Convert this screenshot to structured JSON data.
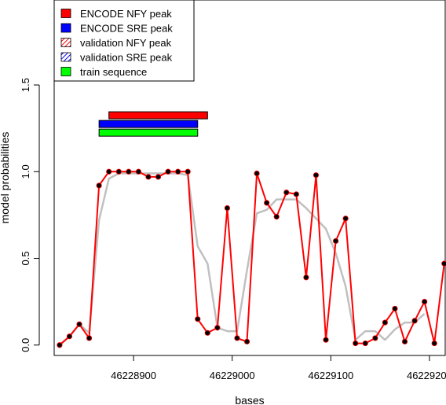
{
  "chart_data": {
    "type": "line",
    "title": "",
    "xlabel": "bases",
    "ylabel": "model probabilities",
    "xlim": [
      46228819.5,
      46229216.0
    ],
    "ylim": [
      -0.06,
      1.99
    ],
    "xticks": [
      46228900,
      46229000,
      46229100,
      46229200
    ],
    "xtick_labels": [
      "46228900",
      "46229000",
      "46229100",
      "46229200"
    ],
    "yticks": [
      0.0,
      0.5,
      1.0,
      1.5
    ],
    "ytick_labels": [
      "0.0",
      "0.5",
      "1.0",
      "1.5"
    ],
    "grid": false,
    "legend_position": "top-left",
    "legend": [
      {
        "label": "ENCODE NFY peak",
        "color": "#ff0000",
        "style": "solid"
      },
      {
        "label": "ENCODE SRE peak",
        "color": "#0000ff",
        "style": "solid"
      },
      {
        "label": " validation NFY peak",
        "color": "#ff0000",
        "style": "hatched"
      },
      {
        "label": "validation SRE peak",
        "color": "#0000ff",
        "style": "hatched"
      },
      {
        "label": "train sequence",
        "color": "#00ff00",
        "style": "solid"
      }
    ],
    "regions": [
      {
        "label": "ENCODE NFY peak",
        "color": "#ff0000",
        "x0": 46228875,
        "x1": 46228975,
        "y": 1.325
      },
      {
        "label": "ENCODE SRE peak",
        "color": "#0000ff",
        "x0": 46228865,
        "x1": 46228965,
        "y": 1.275
      },
      {
        "label": "train sequence",
        "color": "#00ff00",
        "x0": 46228865,
        "x1": 46228965,
        "y": 1.225
      }
    ],
    "series": [
      {
        "color": "#ff0000",
        "points": [
          [
            46228825,
            0.0
          ],
          [
            46228835,
            0.05
          ],
          [
            46228845,
            0.12
          ],
          [
            46228855,
            0.04
          ],
          [
            46228865,
            0.92
          ],
          [
            46228875,
            1.0
          ],
          [
            46228885,
            1.0
          ],
          [
            46228895,
            1.0
          ],
          [
            46228905,
            1.0
          ],
          [
            46228915,
            0.97
          ],
          [
            46228925,
            0.97
          ],
          [
            46228935,
            1.0
          ],
          [
            46228945,
            1.0
          ],
          [
            46228955,
            1.0
          ],
          [
            46228965,
            0.15
          ],
          [
            46228975,
            0.07
          ],
          [
            46228985,
            0.1
          ],
          [
            46228995,
            0.79
          ],
          [
            46229005,
            0.04
          ],
          [
            46229015,
            0.02
          ],
          [
            46229025,
            0.99
          ],
          [
            46229035,
            0.82
          ],
          [
            46229045,
            0.74
          ],
          [
            46229055,
            0.88
          ],
          [
            46229065,
            0.87
          ],
          [
            46229075,
            0.39
          ],
          [
            46229085,
            0.98
          ],
          [
            46229095,
            0.03
          ],
          [
            46229105,
            0.6
          ],
          [
            46229115,
            0.73
          ],
          [
            46229125,
            0.01
          ],
          [
            46229135,
            0.01
          ],
          [
            46229145,
            0.04
          ],
          [
            46229155,
            0.13
          ],
          [
            46229165,
            0.21
          ],
          [
            46229175,
            0.02
          ],
          [
            46229185,
            0.14
          ],
          [
            46229195,
            0.25
          ],
          [
            46229205,
            0.01
          ],
          [
            46229215,
            0.47
          ]
        ]
      },
      {
        "color": "#c0c0c0",
        "points": [
          [
            46228825,
            0.0
          ],
          [
            46228835,
            0.05
          ],
          [
            46228845,
            0.12
          ],
          [
            46228855,
            0.07
          ],
          [
            46228865,
            0.72
          ],
          [
            46228875,
            0.96
          ],
          [
            46228885,
            0.99
          ],
          [
            46228895,
            0.99
          ],
          [
            46228905,
            0.99
          ],
          [
            46228915,
            0.99
          ],
          [
            46228925,
            0.99
          ],
          [
            46228935,
            0.99
          ],
          [
            46228945,
            0.99
          ],
          [
            46228955,
            0.98
          ],
          [
            46228965,
            0.57
          ],
          [
            46228975,
            0.47
          ],
          [
            46228985,
            0.1
          ],
          [
            46228995,
            0.08
          ],
          [
            46229005,
            0.08
          ],
          [
            46229015,
            0.43
          ],
          [
            46229025,
            0.76
          ],
          [
            46229035,
            0.78
          ],
          [
            46229045,
            0.84
          ],
          [
            46229055,
            0.84
          ],
          [
            46229065,
            0.84
          ],
          [
            46229075,
            0.79
          ],
          [
            46229085,
            0.73
          ],
          [
            46229095,
            0.67
          ],
          [
            46229105,
            0.53
          ],
          [
            46229115,
            0.34
          ],
          [
            46229125,
            0.03
          ],
          [
            46229135,
            0.08
          ],
          [
            46229145,
            0.08
          ],
          [
            46229155,
            0.03
          ],
          [
            46229165,
            0.09
          ],
          [
            46229175,
            0.13
          ],
          [
            46229185,
            0.13
          ],
          [
            46229195,
            0.18
          ]
        ]
      }
    ]
  }
}
